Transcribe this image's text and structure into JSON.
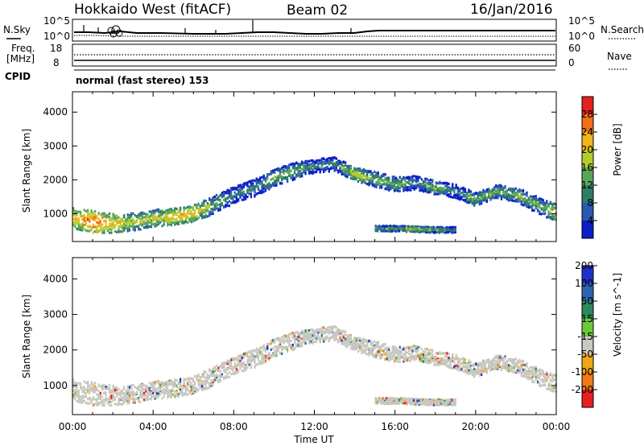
{
  "header": {
    "station": "Hokkaido West (fitACF)",
    "beam": "Beam 02",
    "date": "16/Jan/2016"
  },
  "noise_panel": {
    "left_label": "N.Sky",
    "right_label": "N.Search",
    "left_ticks": [
      "10^5",
      "10^0"
    ],
    "right_ticks": [
      "10^5",
      "10^0"
    ]
  },
  "freq_panel": {
    "left_label_1": "Freq.",
    "left_label_2": "[MHz]",
    "right_label": "Nave",
    "left_ticks": [
      "18",
      "8"
    ],
    "right_ticks": [
      "60",
      "0"
    ]
  },
  "cpid": {
    "label": "CPID",
    "mode": "normal (fast stereo) 153"
  },
  "chart_data": [
    {
      "type": "heatmap",
      "name": "power",
      "ylabel": "Slant Range [km]",
      "yticks": [
        "1000",
        "2000",
        "3000",
        "4000"
      ],
      "ylim": [
        180,
        4600
      ],
      "xlim": [
        0,
        24
      ],
      "colorbar_label": "Power [dB]",
      "colorbar_ticks": [
        "4",
        "8",
        "12",
        "16",
        "20",
        "24",
        "28"
      ],
      "colors": [
        "#0a1ec8",
        "#2a58b0",
        "#2e7e66",
        "#5aa45a",
        "#b4cc2c",
        "#f0b41c",
        "#f07018",
        "#e62020"
      ],
      "bands": [
        {
          "x": [
            0,
            1,
            2,
            3,
            4,
            5,
            6,
            7,
            8,
            9,
            10,
            11,
            12,
            13,
            14,
            15,
            16,
            17,
            18,
            19,
            20,
            21,
            22,
            23,
            24
          ],
          "y": [
            900,
            800,
            750,
            800,
            900,
            950,
            1050,
            1300,
            1600,
            1800,
            2100,
            2300,
            2450,
            2500,
            2200,
            2050,
            1900,
            1950,
            1800,
            1700,
            1450,
            1700,
            1600,
            1300,
            1050
          ],
          "w": [
            300,
            320,
            280,
            260,
            260,
            240,
            250,
            260,
            250,
            250,
            260,
            240,
            200,
            200,
            200,
            220,
            220,
            200,
            200,
            200,
            200,
            200,
            220,
            240,
            260
          ],
          "c": [
            5,
            6,
            5,
            4,
            4,
            5,
            5,
            3,
            2,
            2,
            3,
            3,
            2,
            2,
            4,
            3,
            3,
            2,
            3,
            2,
            3,
            3,
            3,
            3,
            4
          ]
        },
        {
          "x": [
            15,
            16,
            17,
            18,
            19
          ],
          "y": [
            600,
            600,
            580,
            560,
            560
          ],
          "w": [
            80,
            80,
            80,
            80,
            80
          ],
          "c": [
            3,
            3,
            4,
            3,
            2
          ]
        }
      ]
    },
    {
      "type": "heatmap",
      "name": "velocity",
      "xlabel": "Time UT",
      "ylabel": "Slant Range [km]",
      "yticks": [
        "1000",
        "2000",
        "3000",
        "4000"
      ],
      "ylim": [
        180,
        4600
      ],
      "xlim": [
        0,
        24
      ],
      "xticks": [
        "00:00",
        "04:00",
        "08:00",
        "12:00",
        "16:00",
        "20:00",
        "00:00"
      ],
      "colorbar_label": "Velocity [m s^-1]",
      "colorbar_ticks": [
        "200",
        "100",
        "50",
        "15",
        "-15",
        "-50",
        "-100",
        "-200"
      ],
      "colors": [
        "#1e32c8",
        "#2a66b0",
        "#2e8a5a",
        "#6cc83a",
        "#c8c8c0",
        "#f0a61a",
        "#f07a14",
        "#e62020"
      ],
      "dominant_color_index": 4
    }
  ]
}
